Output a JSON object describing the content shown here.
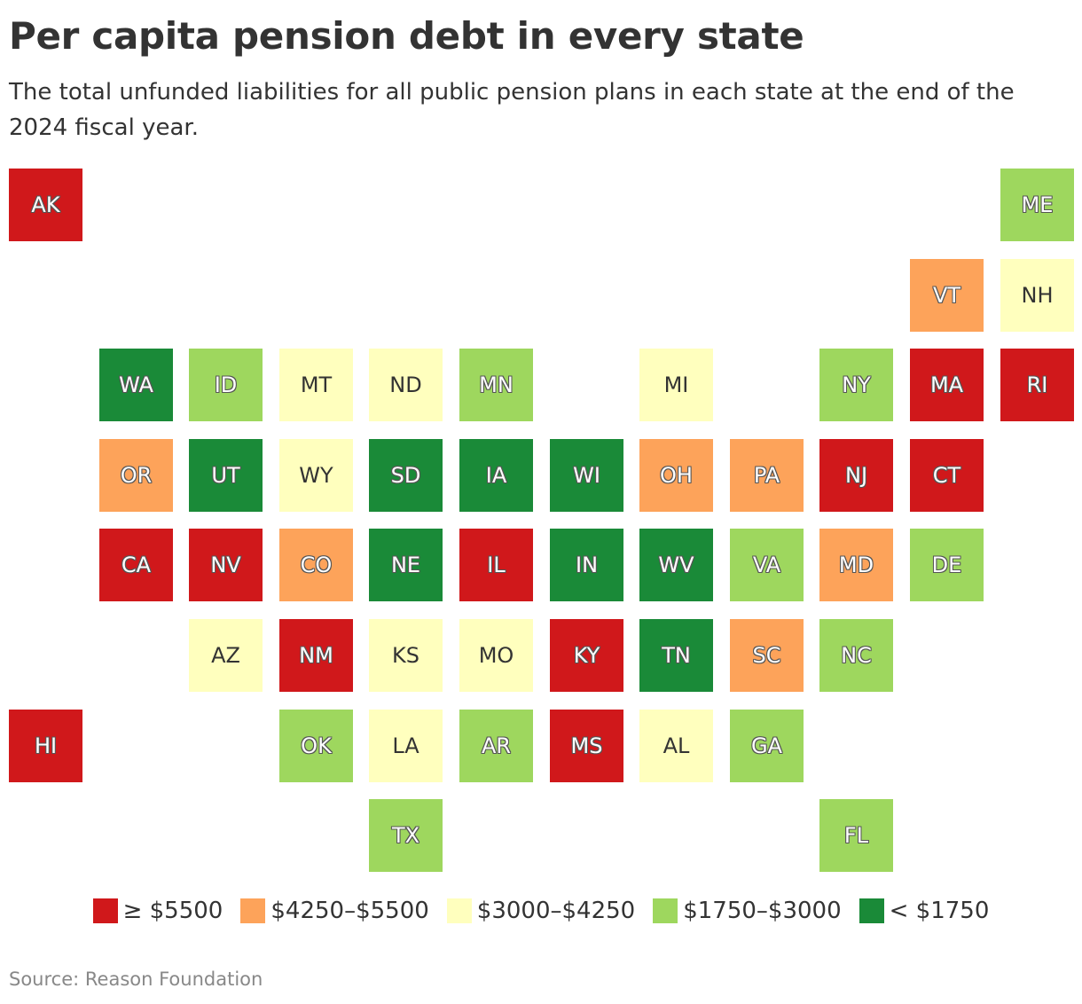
{
  "title": "Per capita pension debt in every state",
  "subtitle": "The total unfunded liabilities for all public pension plans in each state at the end of the 2024 fiscal year.",
  "source": "Source: Reason Foundation",
  "legend": [
    {
      "key": "c1",
      "label": "≥ $5500",
      "color": "#d0181b"
    },
    {
      "key": "c2",
      "label": "$4250–$5500",
      "color": "#fda35a"
    },
    {
      "key": "c3",
      "label": "$3000–$4250",
      "color": "#ffffbe"
    },
    {
      "key": "c4",
      "label": "$1750–$3000",
      "color": "#9ed75e"
    },
    {
      "key": "c5",
      "label": "< $1750",
      "color": "#1a8a38"
    }
  ],
  "chart_data": {
    "type": "heatmap",
    "layout": "tile-grid-map",
    "states": [
      {
        "abbr": "AK",
        "col": 0,
        "row": 0,
        "bin": "c1"
      },
      {
        "abbr": "ME",
        "col": 11,
        "row": 0,
        "bin": "c4"
      },
      {
        "abbr": "VT",
        "col": 10,
        "row": 1,
        "bin": "c2"
      },
      {
        "abbr": "NH",
        "col": 11,
        "row": 1,
        "bin": "c3"
      },
      {
        "abbr": "WA",
        "col": 1,
        "row": 2,
        "bin": "c5"
      },
      {
        "abbr": "ID",
        "col": 2,
        "row": 2,
        "bin": "c4"
      },
      {
        "abbr": "MT",
        "col": 3,
        "row": 2,
        "bin": "c3"
      },
      {
        "abbr": "ND",
        "col": 4,
        "row": 2,
        "bin": "c3"
      },
      {
        "abbr": "MN",
        "col": 5,
        "row": 2,
        "bin": "c4"
      },
      {
        "abbr": "MI",
        "col": 7,
        "row": 2,
        "bin": "c3"
      },
      {
        "abbr": "NY",
        "col": 9,
        "row": 2,
        "bin": "c4"
      },
      {
        "abbr": "MA",
        "col": 10,
        "row": 2,
        "bin": "c1"
      },
      {
        "abbr": "RI",
        "col": 11,
        "row": 2,
        "bin": "c1"
      },
      {
        "abbr": "OR",
        "col": 1,
        "row": 3,
        "bin": "c2"
      },
      {
        "abbr": "UT",
        "col": 2,
        "row": 3,
        "bin": "c5"
      },
      {
        "abbr": "WY",
        "col": 3,
        "row": 3,
        "bin": "c3"
      },
      {
        "abbr": "SD",
        "col": 4,
        "row": 3,
        "bin": "c5"
      },
      {
        "abbr": "IA",
        "col": 5,
        "row": 3,
        "bin": "c5"
      },
      {
        "abbr": "WI",
        "col": 6,
        "row": 3,
        "bin": "c5"
      },
      {
        "abbr": "OH",
        "col": 7,
        "row": 3,
        "bin": "c2"
      },
      {
        "abbr": "PA",
        "col": 8,
        "row": 3,
        "bin": "c2"
      },
      {
        "abbr": "NJ",
        "col": 9,
        "row": 3,
        "bin": "c1"
      },
      {
        "abbr": "CT",
        "col": 10,
        "row": 3,
        "bin": "c1"
      },
      {
        "abbr": "CA",
        "col": 1,
        "row": 4,
        "bin": "c1"
      },
      {
        "abbr": "NV",
        "col": 2,
        "row": 4,
        "bin": "c1"
      },
      {
        "abbr": "CO",
        "col": 3,
        "row": 4,
        "bin": "c2"
      },
      {
        "abbr": "NE",
        "col": 4,
        "row": 4,
        "bin": "c5"
      },
      {
        "abbr": "IL",
        "col": 5,
        "row": 4,
        "bin": "c1"
      },
      {
        "abbr": "IN",
        "col": 6,
        "row": 4,
        "bin": "c5"
      },
      {
        "abbr": "WV",
        "col": 7,
        "row": 4,
        "bin": "c5"
      },
      {
        "abbr": "VA",
        "col": 8,
        "row": 4,
        "bin": "c4"
      },
      {
        "abbr": "MD",
        "col": 9,
        "row": 4,
        "bin": "c2"
      },
      {
        "abbr": "DE",
        "col": 10,
        "row": 4,
        "bin": "c4"
      },
      {
        "abbr": "AZ",
        "col": 2,
        "row": 5,
        "bin": "c3"
      },
      {
        "abbr": "NM",
        "col": 3,
        "row": 5,
        "bin": "c1"
      },
      {
        "abbr": "KS",
        "col": 4,
        "row": 5,
        "bin": "c3"
      },
      {
        "abbr": "MO",
        "col": 5,
        "row": 5,
        "bin": "c3"
      },
      {
        "abbr": "KY",
        "col": 6,
        "row": 5,
        "bin": "c1"
      },
      {
        "abbr": "TN",
        "col": 7,
        "row": 5,
        "bin": "c5"
      },
      {
        "abbr": "SC",
        "col": 8,
        "row": 5,
        "bin": "c2"
      },
      {
        "abbr": "NC",
        "col": 9,
        "row": 5,
        "bin": "c4"
      },
      {
        "abbr": "HI",
        "col": 0,
        "row": 6,
        "bin": "c1"
      },
      {
        "abbr": "OK",
        "col": 3,
        "row": 6,
        "bin": "c4"
      },
      {
        "abbr": "LA",
        "col": 4,
        "row": 6,
        "bin": "c3"
      },
      {
        "abbr": "AR",
        "col": 5,
        "row": 6,
        "bin": "c4"
      },
      {
        "abbr": "MS",
        "col": 6,
        "row": 6,
        "bin": "c1"
      },
      {
        "abbr": "AL",
        "col": 7,
        "row": 6,
        "bin": "c3"
      },
      {
        "abbr": "GA",
        "col": 8,
        "row": 6,
        "bin": "c4"
      },
      {
        "abbr": "TX",
        "col": 4,
        "row": 7,
        "bin": "c4"
      },
      {
        "abbr": "FL",
        "col": 9,
        "row": 7,
        "bin": "c4"
      }
    ]
  }
}
